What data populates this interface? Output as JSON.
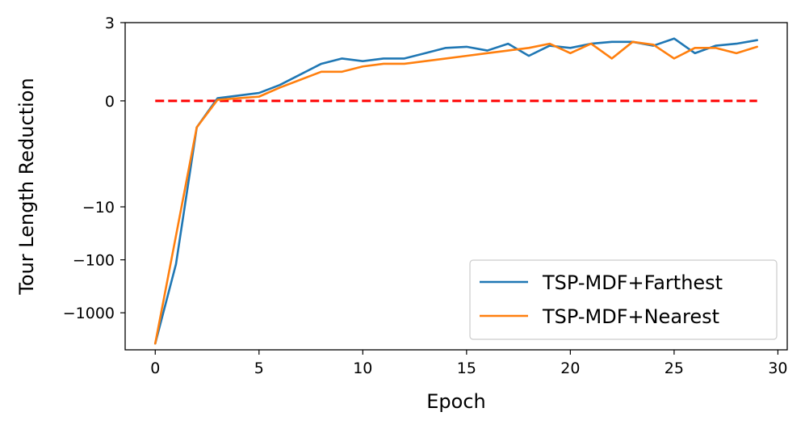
{
  "chart_data": {
    "type": "line",
    "xlabel": "Epoch",
    "ylabel": "Tour Length Reduction",
    "yscale": "symlog",
    "xlim": [
      -1.45,
      30.45
    ],
    "ylim": [
      -5000,
      3
    ],
    "xticks": [
      0,
      5,
      10,
      15,
      20,
      25,
      30
    ],
    "xtick_labels": [
      "0",
      "5",
      "10",
      "15",
      "20",
      "25",
      "30"
    ],
    "yticks": [
      3,
      0,
      -10,
      -100,
      -1000
    ],
    "ytick_labels": [
      "3",
      "0",
      "−10",
      "−100",
      "−1000"
    ],
    "grid": false,
    "legend_position": "lower right",
    "reference_line": {
      "y": 0,
      "style": "dashed",
      "color": "#ff0000"
    },
    "x": [
      0,
      1,
      2,
      3,
      4,
      5,
      6,
      7,
      8,
      9,
      10,
      11,
      12,
      13,
      14,
      15,
      16,
      17,
      18,
      19,
      20,
      21,
      22,
      23,
      24,
      25,
      26,
      27,
      28,
      29
    ],
    "series": [
      {
        "name": "TSP-MDF+Farthest",
        "color": "#1f77b4",
        "values": [
          -3800,
          -120,
          -0.5,
          0.05,
          0.1,
          0.15,
          0.3,
          0.5,
          0.7,
          0.8,
          0.75,
          0.8,
          0.8,
          0.9,
          1.0,
          1.05,
          0.95,
          1.2,
          0.85,
          1.1,
          1.0,
          1.2,
          1.3,
          1.3,
          1.1,
          1.5,
          0.9,
          1.1,
          1.2,
          1.4
        ]
      },
      {
        "name": "TSP-MDF+Nearest",
        "color": "#ff7f0e",
        "values": [
          -3800,
          -35,
          -0.5,
          0.02,
          0.05,
          0.08,
          0.25,
          0.4,
          0.55,
          0.55,
          0.65,
          0.7,
          0.7,
          0.75,
          0.8,
          0.85,
          0.9,
          0.95,
          1.0,
          1.2,
          0.9,
          1.2,
          0.8,
          1.3,
          1.15,
          0.8,
          1.0,
          1.0,
          0.9,
          1.05
        ]
      }
    ]
  }
}
